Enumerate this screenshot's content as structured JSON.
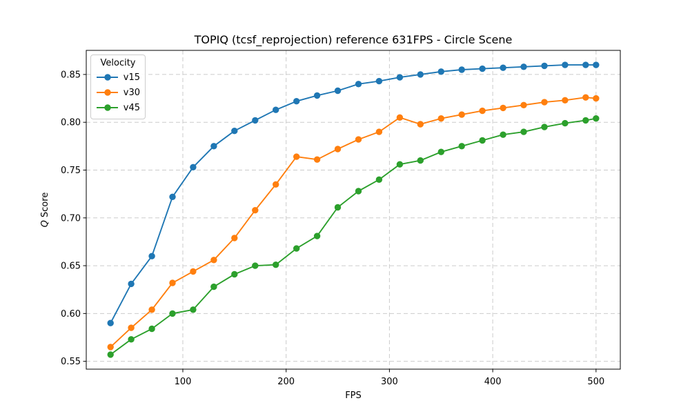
{
  "figure": {
    "title": "TOPIQ (tcsf_reprojection) reference 631FPS - Circle Scene",
    "xlabel": "FPS",
    "ylabel_q": "Q",
    "ylabel_rest": "Score"
  },
  "chart_data": {
    "type": "line",
    "title": "TOPIQ (tcsf_reprojection) reference 631FPS - Circle Scene",
    "xlabel": "FPS",
    "ylabel": "Q Score",
    "legend_title": "Velocity",
    "legend_position": "upper left",
    "grid": true,
    "grid_style": "dashed",
    "xlim": [
      6.5,
      523.5
    ],
    "ylim": [
      0.5418,
      0.8752
    ],
    "x_ticks": [
      100,
      200,
      300,
      400,
      500
    ],
    "y_ticks": [
      0.55,
      0.6,
      0.65,
      0.7,
      0.75,
      0.8,
      0.85
    ],
    "x": [
      30,
      50,
      70,
      90,
      110,
      130,
      150,
      170,
      190,
      210,
      230,
      250,
      270,
      290,
      310,
      330,
      350,
      370,
      390,
      410,
      430,
      450,
      470,
      490,
      500
    ],
    "series": [
      {
        "name": "v15",
        "color": "#1f77b4",
        "values": [
          0.59,
          0.631,
          0.66,
          0.722,
          0.753,
          0.775,
          0.791,
          0.802,
          0.813,
          0.822,
          0.828,
          0.833,
          0.84,
          0.843,
          0.847,
          0.85,
          0.853,
          0.855,
          0.856,
          0.857,
          0.858,
          0.859,
          0.86,
          0.86,
          0.86
        ]
      },
      {
        "name": "v30",
        "color": "#ff7f0e",
        "values": [
          0.565,
          0.585,
          0.604,
          0.632,
          0.644,
          0.656,
          0.679,
          0.708,
          0.735,
          0.764,
          0.761,
          0.772,
          0.782,
          0.79,
          0.805,
          0.798,
          0.804,
          0.808,
          0.812,
          0.815,
          0.818,
          0.821,
          0.823,
          0.826,
          0.825
        ]
      },
      {
        "name": "v45",
        "color": "#2ca02c",
        "values": [
          0.557,
          0.573,
          0.584,
          0.6,
          0.604,
          0.628,
          0.641,
          0.65,
          0.651,
          0.668,
          0.681,
          0.711,
          0.728,
          0.74,
          0.756,
          0.76,
          0.769,
          0.775,
          0.781,
          0.787,
          0.79,
          0.795,
          0.799,
          0.802,
          0.804
        ]
      }
    ]
  }
}
